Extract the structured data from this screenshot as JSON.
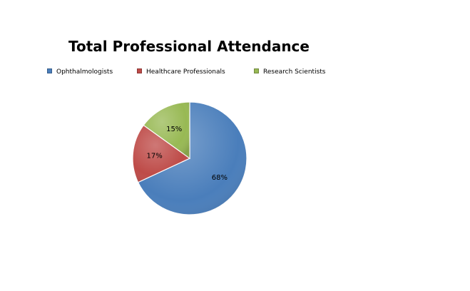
{
  "chart_data": {
    "type": "pie",
    "title": "Total Professional Attendance",
    "legend_position": "top",
    "categories": [
      "Ophthalmologists",
      "Healthcare Professionals",
      "Research Scientists"
    ],
    "values": [
      68,
      17,
      15
    ],
    "labels": [
      "68%",
      "17%",
      "15%"
    ],
    "colors": [
      "#4a7ebb",
      "#be4b48",
      "#98b954"
    ]
  }
}
